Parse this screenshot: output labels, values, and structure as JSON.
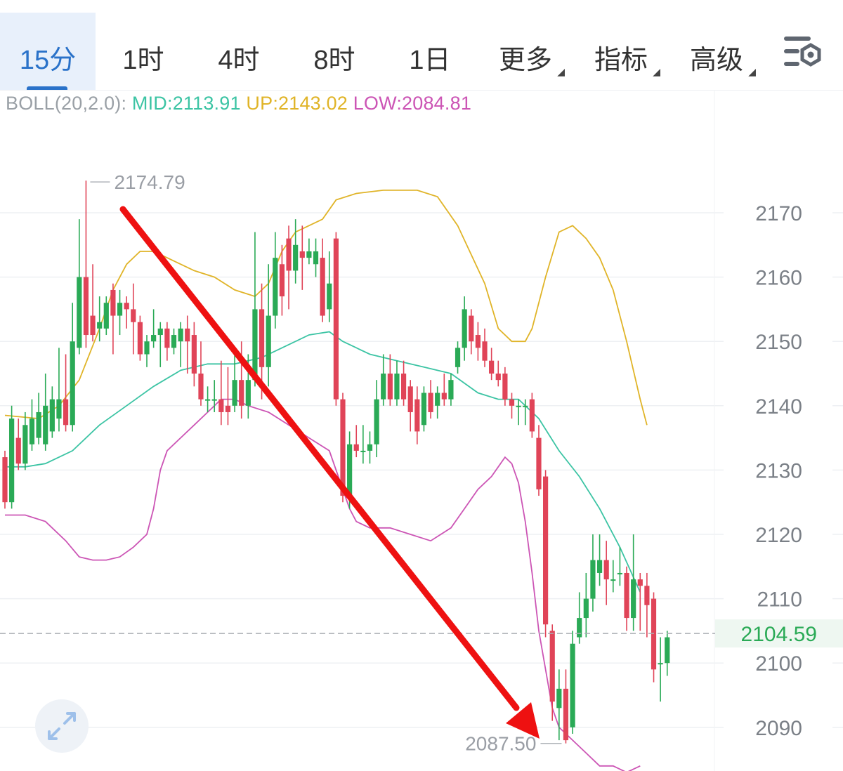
{
  "tabs": [
    {
      "label": "15分",
      "active": true
    },
    {
      "label": "1时"
    },
    {
      "label": "4时"
    },
    {
      "label": "8时"
    },
    {
      "label": "1日"
    },
    {
      "label": "更多",
      "dropdown": true
    },
    {
      "label": "指标",
      "dropdown": true
    },
    {
      "label": "高级",
      "dropdown": true
    }
  ],
  "settings_icon": "settings-sliders-icon",
  "expand_icon": "expand-arrows-icon",
  "indicator": {
    "name": "BOLL(20,2.0):",
    "mid": "MID:2113.91",
    "up": "UP:2143.02",
    "low": "LOW:2084.81"
  },
  "colors": {
    "mid": "#3cc4a4",
    "up": "#e0b428",
    "low": "#cc55b5",
    "up_candle": "#2aaa56",
    "down_candle": "#e04458",
    "arrow": "#ee1111",
    "price_tag": "#2aaa56",
    "active_tab": "#2a72c9"
  },
  "chart_data": {
    "type": "candlestick",
    "y_ticks": [
      "2170",
      "2160",
      "2150",
      "2140",
      "2130",
      "2120",
      "2110",
      "2100",
      "2090"
    ],
    "high_label": "2174.79",
    "low_label": "2087.50",
    "current_price": "2104.59",
    "candles": [
      [
        2132,
        2125,
        2133,
        2124
      ],
      [
        2125,
        2138,
        2140,
        2124
      ],
      [
        2135,
        2131,
        2138,
        2130
      ],
      [
        2131,
        2137,
        2139,
        2130
      ],
      [
        2134,
        2138,
        2141,
        2133
      ],
      [
        2135,
        2139,
        2142,
        2134
      ],
      [
        2134,
        2140,
        2145,
        2133
      ],
      [
        2136,
        2141,
        2143,
        2135
      ],
      [
        2138,
        2141,
        2149,
        2136
      ],
      [
        2141,
        2137,
        2148,
        2136
      ],
      [
        2137,
        2150,
        2156,
        2136
      ],
      [
        2149,
        2160,
        2169,
        2148
      ],
      [
        2160,
        2151,
        2175,
        2149
      ],
      [
        2154,
        2151,
        2162,
        2150
      ],
      [
        2152,
        2153,
        2157,
        2150
      ],
      [
        2152,
        2156,
        2157,
        2151
      ],
      [
        2158,
        2154,
        2159,
        2148
      ],
      [
        2154,
        2156,
        2158,
        2151
      ],
      [
        2156,
        2155,
        2157,
        2152
      ],
      [
        2155,
        2153,
        2159,
        2148
      ],
      [
        2153,
        2148,
        2154,
        2147
      ],
      [
        2148,
        2150,
        2151,
        2146
      ],
      [
        2150,
        2151,
        2155,
        2149
      ],
      [
        2151,
        2152,
        2153,
        2146
      ],
      [
        2152,
        2149,
        2153,
        2147
      ],
      [
        2149,
        2151,
        2152,
        2148
      ],
      [
        2150,
        2152,
        2153,
        2146
      ],
      [
        2152,
        2150,
        2154,
        2145
      ],
      [
        2151,
        2145,
        2153,
        2143
      ],
      [
        2145,
        2141,
        2150,
        2140
      ],
      [
        2141,
        2141,
        2143,
        2139
      ],
      [
        2141,
        2141,
        2144,
        2139
      ],
      [
        2141,
        2139,
        2147,
        2137
      ],
      [
        2140,
        2139,
        2146,
        2137
      ],
      [
        2140,
        2144,
        2148,
        2139
      ],
      [
        2144,
        2140,
        2150,
        2138
      ],
      [
        2140,
        2144,
        2148,
        2138
      ],
      [
        2144,
        2155,
        2167,
        2143
      ],
      [
        2155,
        2146,
        2159,
        2141
      ],
      [
        2146,
        2154,
        2162,
        2143
      ],
      [
        2154,
        2163,
        2167,
        2152
      ],
      [
        2162,
        2157,
        2165,
        2154
      ],
      [
        2166,
        2161,
        2168,
        2155
      ],
      [
        2161,
        2165,
        2169,
        2159
      ],
      [
        2164,
        2163,
        2168,
        2158
      ],
      [
        2163,
        2164,
        2166,
        2162
      ],
      [
        2162,
        2164,
        2166,
        2160
      ],
      [
        2163,
        2154,
        2166,
        2153
      ],
      [
        2155,
        2159,
        2164,
        2153
      ],
      [
        2166,
        2141,
        2167,
        2140
      ],
      [
        2141,
        2126,
        2142,
        2125
      ],
      [
        2126,
        2134,
        2136,
        2124
      ],
      [
        2134,
        2133,
        2137,
        2132
      ],
      [
        2133,
        2133,
        2137,
        2131
      ],
      [
        2133,
        2134,
        2136,
        2131
      ],
      [
        2134,
        2141,
        2144,
        2132
      ],
      [
        2141,
        2145,
        2148,
        2140
      ],
      [
        2145,
        2141,
        2148,
        2140
      ],
      [
        2141,
        2145,
        2147,
        2140
      ],
      [
        2145,
        2141,
        2147,
        2140
      ],
      [
        2143,
        2139,
        2144,
        2136
      ],
      [
        2141,
        2136,
        2143,
        2134
      ],
      [
        2137,
        2142,
        2143,
        2136
      ],
      [
        2142,
        2139,
        2144,
        2138
      ],
      [
        2140,
        2142,
        2143,
        2138
      ],
      [
        2142,
        2141,
        2145,
        2140
      ],
      [
        2141,
        2144,
        2145,
        2140
      ],
      [
        2146,
        2149,
        2150,
        2145
      ],
      [
        2149,
        2155,
        2157,
        2147
      ],
      [
        2154,
        2150,
        2155,
        2148
      ],
      [
        2151,
        2149,
        2153,
        2147
      ],
      [
        2150,
        2147,
        2152,
        2146
      ],
      [
        2147,
        2145,
        2149,
        2144
      ],
      [
        2145,
        2144,
        2147,
        2143
      ],
      [
        2145,
        2141,
        2146,
        2140
      ],
      [
        2141,
        2140,
        2142,
        2138
      ],
      [
        2140,
        2140,
        2141,
        2137
      ],
      [
        2140,
        2140,
        2141,
        2137
      ],
      [
        2141,
        2136,
        2142,
        2135
      ],
      [
        2135,
        2127,
        2137,
        2126
      ],
      [
        2129,
        2106,
        2130,
        2104
      ],
      [
        2105,
        2094,
        2106,
        2091
      ],
      [
        2093,
        2096,
        2099,
        2088
      ],
      [
        2096,
        2088,
        2099,
        2087.5
      ],
      [
        2090,
        2103,
        2105,
        2089
      ],
      [
        2104,
        2107,
        2111,
        2103
      ],
      [
        2107,
        2110,
        2114,
        2104
      ],
      [
        2110,
        2116,
        2120,
        2108
      ],
      [
        2114,
        2116,
        2120,
        2112
      ],
      [
        2116,
        2113,
        2119,
        2109
      ],
      [
        2113,
        2113,
        2116,
        2111
      ],
      [
        2114,
        2114,
        2118,
        2112
      ],
      [
        2114,
        2107,
        2115,
        2105
      ],
      [
        2107,
        2113,
        2120,
        2105
      ],
      [
        2113,
        2112,
        2114,
        2105
      ],
      [
        2112,
        2109,
        2114,
        2104
      ],
      [
        2110,
        2099,
        2111,
        2097
      ],
      [
        2100,
        2100,
        2104,
        2094
      ],
      [
        2100,
        2104,
        2105,
        2098
      ]
    ],
    "bands": {
      "up": [
        [
          0,
          2138.5
        ],
        [
          5,
          2138
        ],
        [
          8,
          2140
        ],
        [
          11,
          2144
        ],
        [
          14,
          2152
        ],
        [
          16,
          2158
        ],
        [
          18,
          2162
        ],
        [
          20,
          2164
        ],
        [
          22,
          2164
        ],
        [
          24,
          2163
        ],
        [
          28,
          2161
        ],
        [
          31,
          2160
        ],
        [
          34,
          2158
        ],
        [
          37,
          2157
        ],
        [
          39,
          2159
        ],
        [
          41,
          2164
        ],
        [
          43,
          2167
        ],
        [
          45,
          2168
        ],
        [
          47,
          2169
        ],
        [
          49,
          2172
        ],
        [
          52,
          2173
        ],
        [
          56,
          2173.5
        ],
        [
          61,
          2173.5
        ],
        [
          64,
          2172.5
        ],
        [
          67,
          2168
        ],
        [
          71,
          2159
        ],
        [
          73,
          2152
        ],
        [
          75,
          2150
        ],
        [
          77,
          2150
        ],
        [
          78,
          2152
        ],
        [
          80,
          2160
        ],
        [
          82,
          2167
        ],
        [
          84,
          2168
        ],
        [
          86,
          2166
        ],
        [
          88,
          2163
        ],
        [
          90,
          2158
        ],
        [
          92,
          2150
        ],
        [
          94,
          2141
        ],
        [
          95,
          2137
        ]
      ],
      "mid": [
        [
          0,
          2130.5
        ],
        [
          3,
          2130.5
        ],
        [
          6,
          2131
        ],
        [
          10,
          2133
        ],
        [
          14,
          2137
        ],
        [
          18,
          2140
        ],
        [
          22,
          2143
        ],
        [
          26,
          2145.5
        ],
        [
          30,
          2146.5
        ],
        [
          34,
          2146.5
        ],
        [
          38,
          2147.5
        ],
        [
          42,
          2149.5
        ],
        [
          45,
          2151
        ],
        [
          48,
          2151.5
        ],
        [
          50,
          2150
        ],
        [
          54,
          2148
        ],
        [
          58,
          2147
        ],
        [
          62,
          2146
        ],
        [
          66,
          2145
        ],
        [
          70,
          2142
        ],
        [
          73,
          2141
        ],
        [
          76,
          2141
        ],
        [
          79,
          2138
        ],
        [
          82,
          2133
        ],
        [
          85,
          2129
        ],
        [
          88,
          2124
        ],
        [
          91,
          2118
        ],
        [
          94,
          2111
        ]
      ],
      "low": [
        [
          0,
          2123
        ],
        [
          3,
          2123
        ],
        [
          6,
          2122
        ],
        [
          9,
          2119
        ],
        [
          11,
          2116.5
        ],
        [
          13,
          2116
        ],
        [
          15,
          2116
        ],
        [
          17,
          2116.5
        ],
        [
          19,
          2118
        ],
        [
          21,
          2120
        ],
        [
          22,
          2124
        ],
        [
          23,
          2130
        ],
        [
          24,
          2133
        ],
        [
          26,
          2135
        ],
        [
          28,
          2137
        ],
        [
          30,
          2139
        ],
        [
          32,
          2141
        ],
        [
          34,
          2141
        ],
        [
          36,
          2140
        ],
        [
          39,
          2139
        ],
        [
          42,
          2137
        ],
        [
          45,
          2135
        ],
        [
          48,
          2133
        ],
        [
          50,
          2127
        ],
        [
          51,
          2124
        ],
        [
          52,
          2122
        ],
        [
          54,
          2121
        ],
        [
          57,
          2121
        ],
        [
          60,
          2120
        ],
        [
          63,
          2119
        ],
        [
          66,
          2121
        ],
        [
          68,
          2124
        ],
        [
          70,
          2127
        ],
        [
          72,
          2129
        ],
        [
          74,
          2132
        ],
        [
          75,
          2131
        ],
        [
          76,
          2128
        ],
        [
          77,
          2122
        ],
        [
          78,
          2114
        ],
        [
          79,
          2105
        ],
        [
          80,
          2099
        ],
        [
          81,
          2093
        ],
        [
          82,
          2090
        ],
        [
          84,
          2088
        ],
        [
          86,
          2086
        ],
        [
          88,
          2084
        ],
        [
          90,
          2084
        ],
        [
          92,
          2083
        ],
        [
          94,
          2084
        ]
      ]
    }
  }
}
